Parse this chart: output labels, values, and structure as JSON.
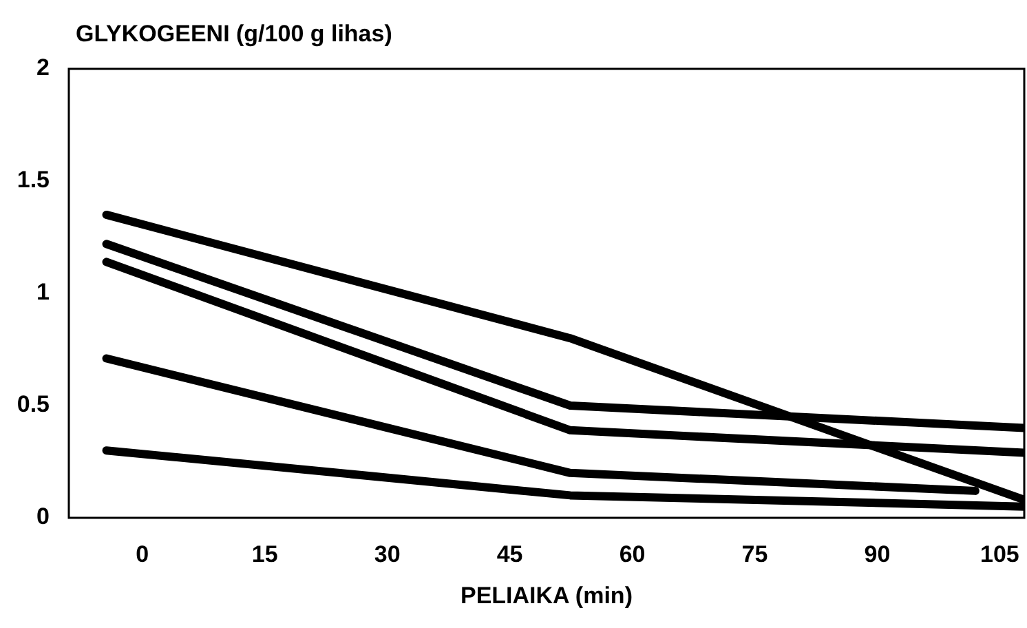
{
  "chart_data": {
    "type": "line",
    "ylabel": "GLYKOGEENI (g/100 g lihas)",
    "xlabel": "PELIAIKA (min)",
    "xlim": [
      -9,
      108
    ],
    "xticks": [
      0,
      15,
      30,
      45,
      60,
      75,
      90,
      105
    ],
    "ylim": [
      0,
      2
    ],
    "yticks": [
      0,
      0.5,
      1,
      1.5,
      2
    ],
    "grid": false,
    "line_style": "solid",
    "series": [
      {
        "color": "#000000",
        "x": [
          -4.4,
          52.4,
          108
        ],
        "values": [
          1.35,
          0.8,
          0.08
        ]
      },
      {
        "color": "#000000",
        "x": [
          -4.4,
          52.4,
          108
        ],
        "values": [
          1.22,
          0.5,
          0.4
        ]
      },
      {
        "color": "#000000",
        "x": [
          -4.4,
          52.4,
          108
        ],
        "values": [
          1.14,
          0.39,
          0.29
        ]
      },
      {
        "color": "#000000",
        "x": [
          -4.4,
          52.4,
          102
        ],
        "values": [
          0.71,
          0.2,
          0.12
        ]
      },
      {
        "color": "#000000",
        "x": [
          -4.4,
          52.4,
          108
        ],
        "values": [
          0.3,
          0.1,
          0.05
        ]
      }
    ]
  }
}
